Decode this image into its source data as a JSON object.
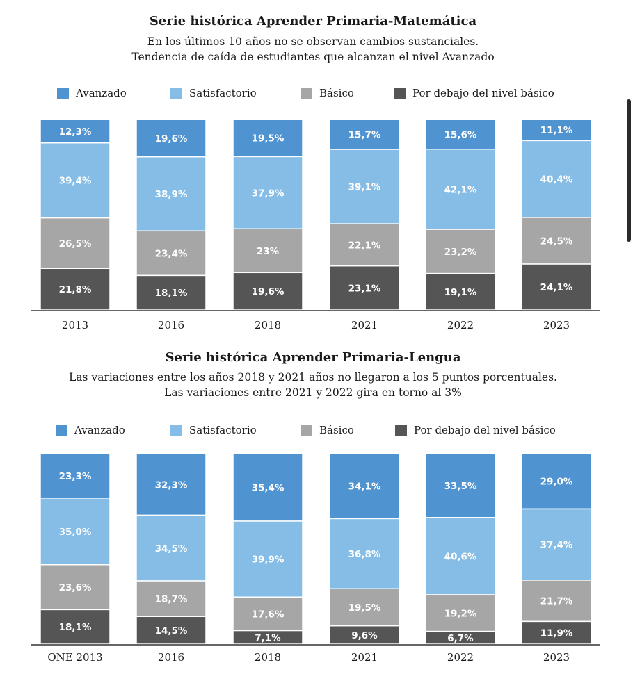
{
  "colors": {
    "Avanzado": "#4f93d1",
    "Satisfactorio": "#86bde6",
    "Basico": "#a6a6a6",
    "PorDebajo": "#555555"
  },
  "legend": [
    "Avanzado",
    "Satisfactorio",
    "Básico",
    "Por debajo del nivel básico"
  ],
  "chart_data": [
    {
      "type": "bar",
      "stacked": true,
      "title": "Serie histórica Aprender Primaria-Matemática",
      "subtitle": [
        "En los últimos 10 años no se observan cambios sustanciales.",
        "Tendencia de caída de estudiantes que alcanzan el nivel Avanzado"
      ],
      "categories": [
        "2013",
        "2016",
        "2018",
        "2021",
        "2022",
        "2023"
      ],
      "series": [
        {
          "name": "Avanzado",
          "values": [
            12.3,
            19.6,
            19.5,
            15.7,
            15.6,
            11.1
          ],
          "labels": [
            "12,3%",
            "19,6%",
            "19,5%",
            "15,7%",
            "15,6%",
            "11,1%"
          ]
        },
        {
          "name": "Satisfactorio",
          "values": [
            39.4,
            38.9,
            37.9,
            39.1,
            42.1,
            40.4
          ],
          "labels": [
            "39,4%",
            "38,9%",
            "37,9%",
            "39,1%",
            "42,1%",
            "40,4%"
          ]
        },
        {
          "name": "Básico",
          "values": [
            26.5,
            23.4,
            23,
            22.1,
            23.2,
            24.5
          ],
          "labels": [
            "26,5%",
            "23,4%",
            "23%",
            "22,1%",
            "23,2%",
            "24,5%"
          ]
        },
        {
          "name": "Por debajo del nivel básico",
          "values": [
            21.8,
            18.1,
            19.6,
            23.1,
            19.1,
            24.1
          ],
          "labels": [
            "21,8%",
            "18,1%",
            "19,6%",
            "23,1%",
            "19,1%",
            "24,1%"
          ]
        }
      ]
    },
    {
      "type": "bar",
      "stacked": true,
      "title": "Serie histórica Aprender Primaria-Lengua",
      "subtitle": [
        "Las variaciones entre los años 2018 y 2021 años no llegaron a los 5 puntos porcentuales.",
        "Las variaciones entre 2021 y 2022 gira en torno al 3%"
      ],
      "categories": [
        "ONE 2013",
        "2016",
        "2018",
        "2021",
        "2022",
        "2023"
      ],
      "series": [
        {
          "name": "Avanzado",
          "values": [
            23.3,
            32.3,
            35.4,
            34.1,
            33.5,
            29.0
          ],
          "labels": [
            "23,3%",
            "32,3%",
            "35,4%",
            "34,1%",
            "33,5%",
            "29,0%"
          ]
        },
        {
          "name": "Satisfactorio",
          "values": [
            35.0,
            34.5,
            39.9,
            36.8,
            40.6,
            37.4
          ],
          "labels": [
            "35,0%",
            "34,5%",
            "39,9%",
            "36,8%",
            "40,6%",
            "37,4%"
          ]
        },
        {
          "name": "Básico",
          "values": [
            23.6,
            18.7,
            17.6,
            19.5,
            19.2,
            21.7
          ],
          "labels": [
            "23,6%",
            "18,7%",
            "17,6%",
            "19,5%",
            "19,2%",
            "21,7%"
          ]
        },
        {
          "name": "Por debajo del nivel básico",
          "values": [
            18.1,
            14.5,
            7.1,
            9.6,
            6.7,
            11.9
          ],
          "labels": [
            "18,1%",
            "14,5%",
            "7,1%",
            "9,6%",
            "6,7%",
            "11,9%"
          ]
        }
      ]
    }
  ]
}
